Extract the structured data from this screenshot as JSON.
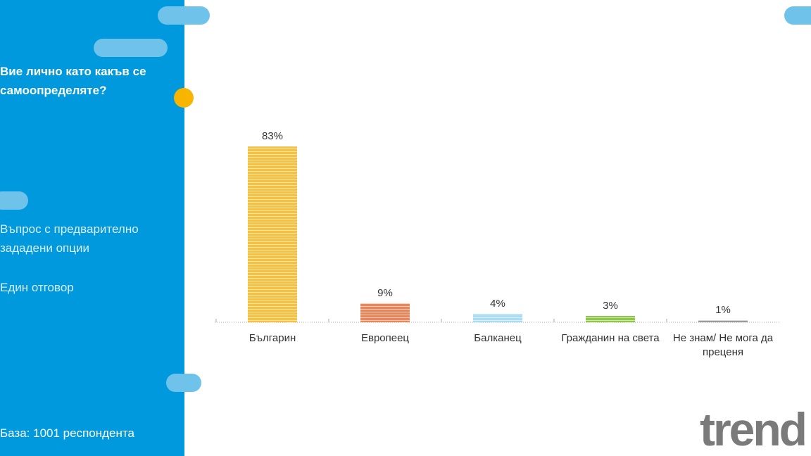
{
  "sidebar": {
    "question": "Вие лично като какъв се самоопределяте?",
    "question_type": "Въпрос с предварително зададени опции",
    "answer_type": "Един отговор",
    "base": "База:  1001 респондента"
  },
  "logo": "trend",
  "chart_data": {
    "type": "bar",
    "categories": [
      "Българин",
      "Европеец",
      "Балканец",
      "Гражданин на света",
      "Не знам/ Не мога да преценя"
    ],
    "values": [
      83,
      9,
      4,
      3,
      1
    ],
    "value_labels": [
      "83%",
      "9%",
      "4%",
      "3%",
      "1%"
    ],
    "colors": [
      "#f5c13f",
      "#ea8459",
      "#a9dcf4",
      "#8fc649",
      "#9a9a9a"
    ]
  }
}
